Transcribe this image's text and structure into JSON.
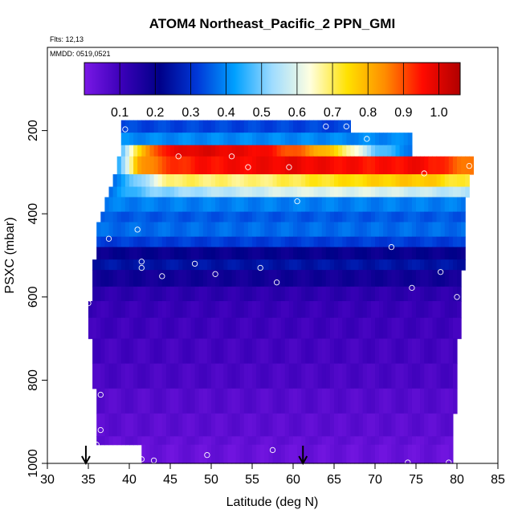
{
  "chart_data": {
    "type": "heatmap",
    "title": "ATOM4 Northeast_Pacific_2 PPN_GMI",
    "flights_label": "Flts: 12,13",
    "dates_label": "MMDD: 0519,0521",
    "xlabel": "Latitude (deg N)",
    "ylabel": "PSXC (mbar)",
    "xlim": [
      30,
      85
    ],
    "ylim": [
      1000,
      0
    ],
    "x_ticks": [
      "30",
      "35",
      "40",
      "45",
      "50",
      "55",
      "60",
      "65",
      "70",
      "75",
      "80",
      "85"
    ],
    "y_ticks": [
      "200",
      "400",
      "600",
      "800",
      "1000"
    ],
    "colorbar": {
      "range": [
        0,
        1.06
      ],
      "tick_labels": [
        "0.1",
        "0.2",
        "0.3",
        "0.4",
        "0.5",
        "0.6",
        "0.7",
        "0.8",
        "0.9",
        "1.0"
      ],
      "tick_values": [
        0.1,
        0.2,
        0.3,
        0.4,
        0.5,
        0.6,
        0.7,
        0.8,
        0.9,
        1.0
      ],
      "colors": [
        "#7a18e6",
        "#3a00b8",
        "#000088",
        "#0038d8",
        "#00a0ff",
        "#9fdcff",
        "#ffffe0",
        "#ffe100",
        "#ff8c00",
        "#ff0a00",
        "#b00000"
      ]
    },
    "layers": [
      {
        "p_top": 175,
        "p_bot": 205,
        "lat_min": 39,
        "lat_max": 67,
        "value": 0.33
      },
      {
        "p_top": 205,
        "p_bot": 235,
        "lat_min": 39,
        "lat_max": 74.5,
        "value": 0.4
      },
      {
        "p_top": 235,
        "p_bot": 262,
        "lat_min": 39,
        "lat_max": 74.5,
        "profile": [
          [
            39,
            0.45
          ],
          [
            40.5,
            0.7
          ],
          [
            44,
            0.95
          ],
          [
            48,
            1.0
          ],
          [
            56,
            0.97
          ],
          [
            62,
            0.85
          ],
          [
            66,
            0.72
          ],
          [
            70,
            0.5
          ],
          [
            74.5,
            0.38
          ]
        ]
      },
      {
        "p_top": 262,
        "p_bot": 305,
        "lat_min": 38.5,
        "lat_max": 82,
        "profile": [
          [
            38.5,
            0.42
          ],
          [
            41,
            0.8
          ],
          [
            44,
            0.9
          ],
          [
            48,
            0.95
          ],
          [
            60,
            0.98
          ],
          [
            70,
            0.95
          ],
          [
            76,
            0.97
          ],
          [
            82,
            0.85
          ]
        ]
      },
      {
        "p_top": 305,
        "p_bot": 335,
        "lat_min": 38,
        "lat_max": 81.5,
        "profile": [
          [
            38,
            0.38
          ],
          [
            42,
            0.55
          ],
          [
            45,
            0.7
          ],
          [
            55,
            0.68
          ],
          [
            62,
            0.72
          ],
          [
            70,
            0.76
          ],
          [
            76,
            0.78
          ],
          [
            81.5,
            0.7
          ]
        ]
      },
      {
        "p_top": 335,
        "p_bot": 360,
        "lat_min": 37.5,
        "lat_max": 81.5,
        "profile": [
          [
            37.5,
            0.38
          ],
          [
            42,
            0.5
          ],
          [
            50,
            0.55
          ],
          [
            60,
            0.6
          ],
          [
            70,
            0.6
          ],
          [
            81.5,
            0.55
          ]
        ]
      },
      {
        "p_top": 360,
        "p_bot": 395,
        "lat_min": 37,
        "lat_max": 81,
        "value": 0.39
      },
      {
        "p_top": 395,
        "p_bot": 420,
        "lat_min": 36.5,
        "lat_max": 81,
        "value": 0.35
      },
      {
        "p_top": 420,
        "p_bot": 455,
        "lat_min": 36,
        "lat_max": 81,
        "value": 0.37
      },
      {
        "p_top": 455,
        "p_bot": 480,
        "lat_min": 36,
        "lat_max": 81,
        "value": 0.32
      },
      {
        "p_top": 480,
        "p_bot": 510,
        "lat_min": 36,
        "lat_max": 81,
        "value": 0.2
      },
      {
        "p_top": 510,
        "p_bot": 535,
        "lat_min": 35.5,
        "lat_max": 81,
        "value": 0.25
      },
      {
        "p_top": 535,
        "p_bot": 575,
        "lat_min": 35.5,
        "lat_max": 80.5,
        "value": 0.18
      },
      {
        "p_top": 575,
        "p_bot": 610,
        "lat_min": 35.5,
        "lat_max": 80.5,
        "value": 0.13
      },
      {
        "p_top": 610,
        "p_bot": 650,
        "lat_min": 35,
        "lat_max": 80.5,
        "value": 0.11
      },
      {
        "p_top": 650,
        "p_bot": 700,
        "lat_min": 35,
        "lat_max": 80.5,
        "value": 0.1
      },
      {
        "p_top": 700,
        "p_bot": 760,
        "lat_min": 35.5,
        "lat_max": 80,
        "value": 0.09
      },
      {
        "p_top": 760,
        "p_bot": 820,
        "lat_min": 35.5,
        "lat_max": 80,
        "value": 0.08
      },
      {
        "p_top": 820,
        "p_bot": 880,
        "lat_min": 36,
        "lat_max": 80,
        "value": 0.06
      },
      {
        "p_top": 880,
        "p_bot": 935,
        "lat_min": 36,
        "lat_max": 79.5,
        "value": 0.05
      },
      {
        "p_top": 935,
        "p_bot": 955,
        "lat_min": 36,
        "lat_max": 79.5,
        "value": 0.04
      },
      {
        "p_top": 955,
        "p_bot": 1000,
        "lat_min": 41.5,
        "lat_max": 79.5,
        "value": 0.03
      }
    ],
    "sample_points": [
      [
        39.5,
        197
      ],
      [
        64,
        190
      ],
      [
        66.5,
        190
      ],
      [
        69,
        220
      ],
      [
        46,
        262
      ],
      [
        52.5,
        262
      ],
      [
        54.5,
        288
      ],
      [
        59.5,
        288
      ],
      [
        76,
        303
      ],
      [
        81.5,
        285
      ],
      [
        60.5,
        370
      ],
      [
        41,
        438
      ],
      [
        37.5,
        460
      ],
      [
        41.5,
        515
      ],
      [
        41.5,
        530
      ],
      [
        44,
        550
      ],
      [
        48,
        520
      ],
      [
        50.5,
        545
      ],
      [
        56,
        530
      ],
      [
        58,
        565
      ],
      [
        72,
        480
      ],
      [
        74.5,
        578
      ],
      [
        78,
        540
      ],
      [
        80,
        600
      ],
      [
        35,
        615
      ],
      [
        36.5,
        835
      ],
      [
        36.5,
        920
      ],
      [
        36,
        955
      ],
      [
        41.5,
        990
      ],
      [
        43,
        993
      ],
      [
        49.5,
        980
      ],
      [
        57.5,
        968
      ],
      [
        74,
        998
      ],
      [
        79,
        998
      ]
    ],
    "arrows_lat": [
      34.7,
      61.2
    ],
    "grid": false
  }
}
